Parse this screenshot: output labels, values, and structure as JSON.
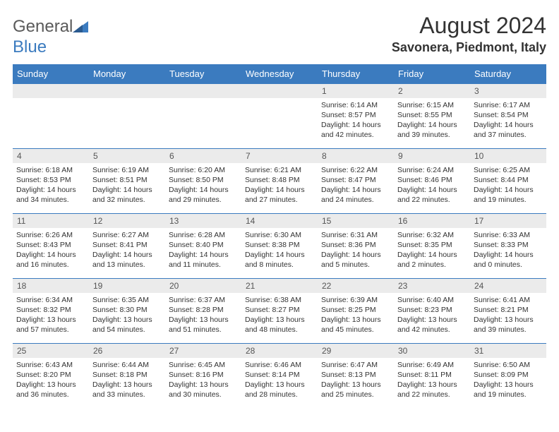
{
  "logo": {
    "text_general": "General",
    "text_blue": "Blue"
  },
  "title": "August 2024",
  "location": "Savonera, Piedmont, Italy",
  "colors": {
    "header_bg": "#3b7bbf",
    "header_text": "#ffffff",
    "daynum_bg": "#ebebeb",
    "text": "#333333"
  },
  "day_names": [
    "Sunday",
    "Monday",
    "Tuesday",
    "Wednesday",
    "Thursday",
    "Friday",
    "Saturday"
  ],
  "weeks": [
    [
      null,
      null,
      null,
      null,
      {
        "n": "1",
        "sr": "6:14 AM",
        "ss": "8:57 PM",
        "dl": "14 hours and 42 minutes."
      },
      {
        "n": "2",
        "sr": "6:15 AM",
        "ss": "8:55 PM",
        "dl": "14 hours and 39 minutes."
      },
      {
        "n": "3",
        "sr": "6:17 AM",
        "ss": "8:54 PM",
        "dl": "14 hours and 37 minutes."
      }
    ],
    [
      {
        "n": "4",
        "sr": "6:18 AM",
        "ss": "8:53 PM",
        "dl": "14 hours and 34 minutes."
      },
      {
        "n": "5",
        "sr": "6:19 AM",
        "ss": "8:51 PM",
        "dl": "14 hours and 32 minutes."
      },
      {
        "n": "6",
        "sr": "6:20 AM",
        "ss": "8:50 PM",
        "dl": "14 hours and 29 minutes."
      },
      {
        "n": "7",
        "sr": "6:21 AM",
        "ss": "8:48 PM",
        "dl": "14 hours and 27 minutes."
      },
      {
        "n": "8",
        "sr": "6:22 AM",
        "ss": "8:47 PM",
        "dl": "14 hours and 24 minutes."
      },
      {
        "n": "9",
        "sr": "6:24 AM",
        "ss": "8:46 PM",
        "dl": "14 hours and 22 minutes."
      },
      {
        "n": "10",
        "sr": "6:25 AM",
        "ss": "8:44 PM",
        "dl": "14 hours and 19 minutes."
      }
    ],
    [
      {
        "n": "11",
        "sr": "6:26 AM",
        "ss": "8:43 PM",
        "dl": "14 hours and 16 minutes."
      },
      {
        "n": "12",
        "sr": "6:27 AM",
        "ss": "8:41 PM",
        "dl": "14 hours and 13 minutes."
      },
      {
        "n": "13",
        "sr": "6:28 AM",
        "ss": "8:40 PM",
        "dl": "14 hours and 11 minutes."
      },
      {
        "n": "14",
        "sr": "6:30 AM",
        "ss": "8:38 PM",
        "dl": "14 hours and 8 minutes."
      },
      {
        "n": "15",
        "sr": "6:31 AM",
        "ss": "8:36 PM",
        "dl": "14 hours and 5 minutes."
      },
      {
        "n": "16",
        "sr": "6:32 AM",
        "ss": "8:35 PM",
        "dl": "14 hours and 2 minutes."
      },
      {
        "n": "17",
        "sr": "6:33 AM",
        "ss": "8:33 PM",
        "dl": "14 hours and 0 minutes."
      }
    ],
    [
      {
        "n": "18",
        "sr": "6:34 AM",
        "ss": "8:32 PM",
        "dl": "13 hours and 57 minutes."
      },
      {
        "n": "19",
        "sr": "6:35 AM",
        "ss": "8:30 PM",
        "dl": "13 hours and 54 minutes."
      },
      {
        "n": "20",
        "sr": "6:37 AM",
        "ss": "8:28 PM",
        "dl": "13 hours and 51 minutes."
      },
      {
        "n": "21",
        "sr": "6:38 AM",
        "ss": "8:27 PM",
        "dl": "13 hours and 48 minutes."
      },
      {
        "n": "22",
        "sr": "6:39 AM",
        "ss": "8:25 PM",
        "dl": "13 hours and 45 minutes."
      },
      {
        "n": "23",
        "sr": "6:40 AM",
        "ss": "8:23 PM",
        "dl": "13 hours and 42 minutes."
      },
      {
        "n": "24",
        "sr": "6:41 AM",
        "ss": "8:21 PM",
        "dl": "13 hours and 39 minutes."
      }
    ],
    [
      {
        "n": "25",
        "sr": "6:43 AM",
        "ss": "8:20 PM",
        "dl": "13 hours and 36 minutes."
      },
      {
        "n": "26",
        "sr": "6:44 AM",
        "ss": "8:18 PM",
        "dl": "13 hours and 33 minutes."
      },
      {
        "n": "27",
        "sr": "6:45 AM",
        "ss": "8:16 PM",
        "dl": "13 hours and 30 minutes."
      },
      {
        "n": "28",
        "sr": "6:46 AM",
        "ss": "8:14 PM",
        "dl": "13 hours and 28 minutes."
      },
      {
        "n": "29",
        "sr": "6:47 AM",
        "ss": "8:13 PM",
        "dl": "13 hours and 25 minutes."
      },
      {
        "n": "30",
        "sr": "6:49 AM",
        "ss": "8:11 PM",
        "dl": "13 hours and 22 minutes."
      },
      {
        "n": "31",
        "sr": "6:50 AM",
        "ss": "8:09 PM",
        "dl": "13 hours and 19 minutes."
      }
    ]
  ],
  "labels": {
    "sunrise": "Sunrise:",
    "sunset": "Sunset:",
    "daylight": "Daylight:"
  }
}
